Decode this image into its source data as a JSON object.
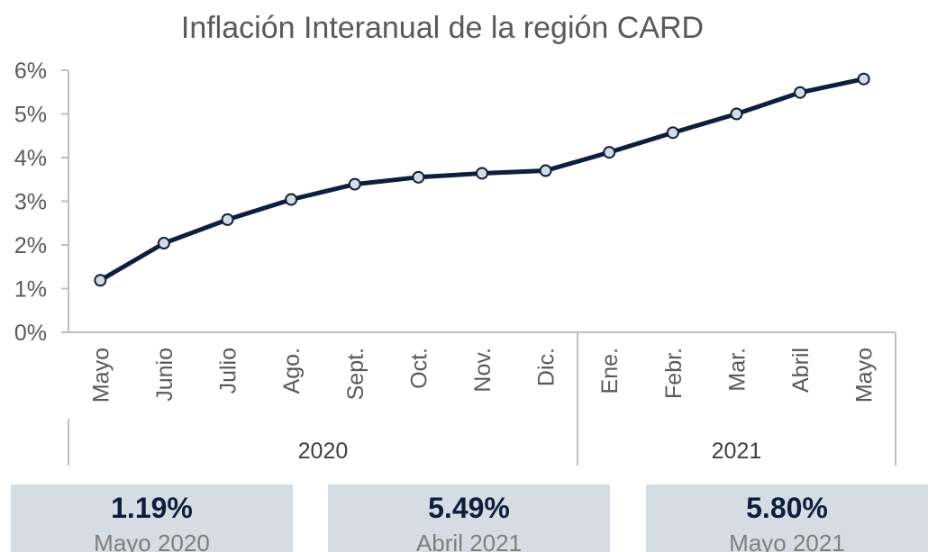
{
  "chart_data": {
    "type": "line",
    "title": "Inflación Interanual de la región CARD",
    "categories": [
      "Mayo",
      "Junio",
      "Julio",
      "Ago.",
      "Sept.",
      "Oct.",
      "Nov.",
      "Dic.",
      "Ene.",
      "Febr.",
      "Mar.",
      "Abril",
      "Mayo"
    ],
    "groups": [
      {
        "label": "2020",
        "categories": [
          "Mayo",
          "Junio",
          "Julio",
          "Ago.",
          "Sept.",
          "Oct.",
          "Nov.",
          "Dic."
        ]
      },
      {
        "label": "2021",
        "categories": [
          "Ene.",
          "Febr.",
          "Mar.",
          "Abril",
          "Mayo"
        ]
      }
    ],
    "values": [
      1.19,
      2.04,
      2.58,
      3.04,
      3.39,
      3.55,
      3.64,
      3.7,
      4.12,
      4.57,
      5.0,
      5.49,
      5.8
    ],
    "ylim": [
      0,
      6
    ],
    "yticks": [
      "0%",
      "1%",
      "2%",
      "3%",
      "4%",
      "5%",
      "6%"
    ],
    "ylabel": "",
    "xlabel": "",
    "grid": false,
    "line_color": "#0d1f3c",
    "marker_fill": "#d6dce4"
  },
  "cards": [
    {
      "value": "1.19%",
      "label": "Mayo 2020"
    },
    {
      "value": "5.49%",
      "label": "Abril 2021"
    },
    {
      "value": "5.80%",
      "label": "Mayo 2021"
    }
  ],
  "colors": {
    "card_bg": "#d6dce4",
    "card_value": "#0d1f3c",
    "card_label": "#7f7f7f",
    "axis": "#bfbfbf"
  }
}
